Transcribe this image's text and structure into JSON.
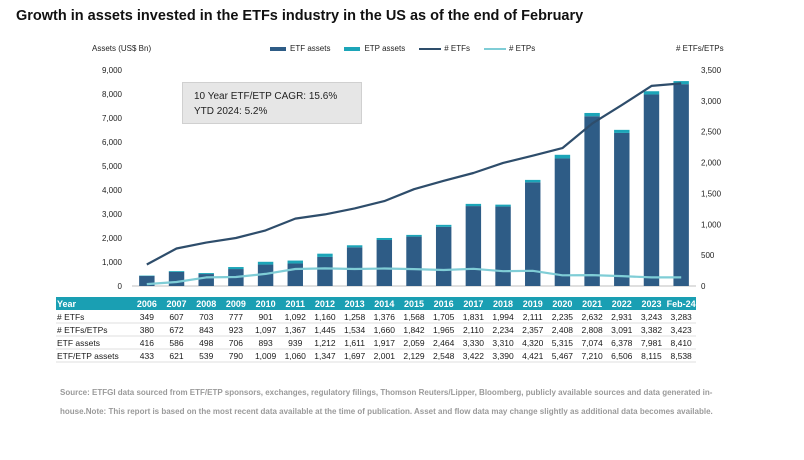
{
  "title": "Growth in assets invested in the ETFs industry in the US as of the end of February",
  "chart_data": {
    "type": "bar",
    "title": "Growth in assets invested in the ETFs industry in the US as of the end of February",
    "ylabel_left": "Assets (US$ Bn)",
    "ylabel_right": "# ETFs/ETPs",
    "ylim_left": [
      0,
      9000
    ],
    "yticks_left": [
      "0",
      "1,000",
      "2,000",
      "3,000",
      "4,000",
      "5,000",
      "6,000",
      "7,000",
      "8,000",
      "9,000"
    ],
    "ylim_right": [
      0,
      3500
    ],
    "yticks_right": [
      "0",
      "500",
      "1,000",
      "1,500",
      "2,000",
      "2,500",
      "3,000",
      "3,500"
    ],
    "categories": [
      "2006",
      "2007",
      "2008",
      "2009",
      "2010",
      "2011",
      "2012",
      "2013",
      "2014",
      "2015",
      "2016",
      "2017",
      "2018",
      "2019",
      "2020",
      "2021",
      "2022",
      "2023",
      "Feb-24"
    ],
    "series": [
      {
        "name": "ETF assets",
        "type": "bar-stacked",
        "axis": "left",
        "color": "#2e5c86",
        "values": [
          416,
          586,
          498,
          706,
          893,
          939,
          1212,
          1611,
          1917,
          2059,
          2464,
          3330,
          3310,
          4320,
          5315,
          7074,
          6378,
          7981,
          8410
        ]
      },
      {
        "name": "ETP assets",
        "type": "bar-stacked",
        "axis": "left",
        "color": "#1ca5b8",
        "values": [
          17,
          35,
          41,
          84,
          116,
          121,
          135,
          86,
          84,
          70,
          84,
          92,
          80,
          101,
          152,
          136,
          128,
          134,
          128
        ]
      },
      {
        "name": "# ETFs",
        "type": "line",
        "axis": "right",
        "color": "#2e4d6b",
        "values": [
          349,
          607,
          703,
          777,
          901,
          1092,
          1160,
          1258,
          1376,
          1568,
          1705,
          1831,
          1994,
          2111,
          2235,
          2632,
          2931,
          3243,
          3283
        ]
      },
      {
        "name": "# ETPs",
        "type": "line",
        "axis": "right",
        "color": "#7fcdd6",
        "values": [
          31,
          65,
          140,
          146,
          196,
          275,
          285,
          276,
          284,
          274,
          260,
          279,
          240,
          246,
          173,
          176,
          160,
          139,
          140
        ]
      }
    ],
    "legend_position": "top",
    "grid": false
  },
  "note": {
    "line1": "10 Year ETF/ETP CAGR: 15.6%",
    "line2": "YTD 2024: 5.2%"
  },
  "table": {
    "header": "Year",
    "columns": [
      "2006",
      "2007",
      "2008",
      "2009",
      "2010",
      "2011",
      "2012",
      "2013",
      "2014",
      "2015",
      "2016",
      "2017",
      "2018",
      "2019",
      "2020",
      "2021",
      "2022",
      "2023",
      "Feb-24"
    ],
    "rows": [
      {
        "label": "# ETFs",
        "values": [
          "349",
          "607",
          "703",
          "777",
          "901",
          "1,092",
          "1,160",
          "1,258",
          "1,376",
          "1,568",
          "1,705",
          "1,831",
          "1,994",
          "2,111",
          "2,235",
          "2,632",
          "2,931",
          "3,243",
          "3,283"
        ]
      },
      {
        "label": "# ETFs/ETPs",
        "values": [
          "380",
          "672",
          "843",
          "923",
          "1,097",
          "1,367",
          "1,445",
          "1,534",
          "1,660",
          "1,842",
          "1,965",
          "2,110",
          "2,234",
          "2,357",
          "2,408",
          "2,808",
          "3,091",
          "3,382",
          "3,423"
        ]
      },
      {
        "label": "ETF assets",
        "values": [
          "416",
          "586",
          "498",
          "706",
          "893",
          "939",
          "1,212",
          "1,611",
          "1,917",
          "2,059",
          "2,464",
          "3,330",
          "3,310",
          "4,320",
          "5,315",
          "7,074",
          "6,378",
          "7,981",
          "8,410"
        ]
      },
      {
        "label": "ETF/ETP assets",
        "values": [
          "433",
          "621",
          "539",
          "790",
          "1,009",
          "1,060",
          "1,347",
          "1,697",
          "2,001",
          "2,129",
          "2,548",
          "3,422",
          "3,390",
          "4,421",
          "5,467",
          "7,210",
          "6,506",
          "8,115",
          "8,538"
        ]
      }
    ]
  },
  "source": "Source: ETFGI data sourced from ETF/ETP sponsors, exchanges, regulatory filings, Thomson Reuters/Lipper, Bloomberg, publicly available sources and data generated in-house.Note: This report is based on the most recent data available at the time of publication. Asset and flow data may change slightly as additional data becomes available."
}
